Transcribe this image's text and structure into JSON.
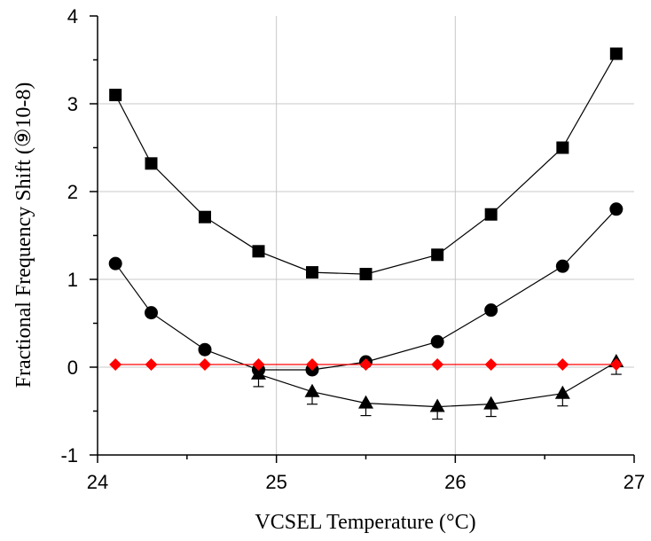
{
  "chart_data": {
    "type": "line",
    "title": "",
    "xlabel": "VCSEL Temperature (°C)",
    "ylabel": "Fractional Frequency Shift (⑨10-8)",
    "xlim": [
      24,
      27
    ],
    "ylim": [
      -1,
      4
    ],
    "x_ticks": [
      24,
      25,
      26,
      27
    ],
    "y_ticks": [
      -1,
      0,
      1,
      2,
      3,
      4
    ],
    "x_tick_labels": [
      "24",
      "25",
      "26",
      "27"
    ],
    "y_tick_labels": [
      "-1",
      "0",
      "1",
      "2",
      "3",
      "4"
    ],
    "grid": true,
    "legend": "none",
    "series": [
      {
        "marker": "square",
        "color": "#000000",
        "x": [
          24.1,
          24.3,
          24.6,
          24.9,
          25.2,
          25.5,
          25.9,
          26.2,
          26.6,
          26.9
        ],
        "y": [
          3.1,
          2.32,
          1.71,
          1.32,
          1.08,
          1.06,
          1.28,
          1.74,
          2.5,
          3.57
        ]
      },
      {
        "marker": "circle",
        "color": "#000000",
        "x": [
          24.1,
          24.3,
          24.6,
          24.9,
          25.2,
          25.5,
          25.9,
          26.2,
          26.6,
          26.9
        ],
        "y": [
          1.18,
          0.62,
          0.2,
          -0.03,
          -0.03,
          0.06,
          0.29,
          0.65,
          1.15,
          1.8
        ]
      },
      {
        "marker": "triangle",
        "color": "#000000",
        "x": [
          24.9,
          25.2,
          25.5,
          25.9,
          26.2,
          26.6,
          26.9
        ],
        "y": [
          -0.08,
          -0.28,
          -0.41,
          -0.45,
          -0.42,
          -0.3,
          0.06
        ]
      },
      {
        "marker": "diamond",
        "color": "#ff0000",
        "x": [
          24.1,
          24.3,
          24.6,
          24.9,
          25.2,
          25.5,
          25.9,
          26.2,
          26.6,
          26.9
        ],
        "y": [
          0.03,
          0.03,
          0.03,
          0.03,
          0.03,
          0.03,
          0.03,
          0.03,
          0.03,
          0.03
        ]
      }
    ]
  }
}
